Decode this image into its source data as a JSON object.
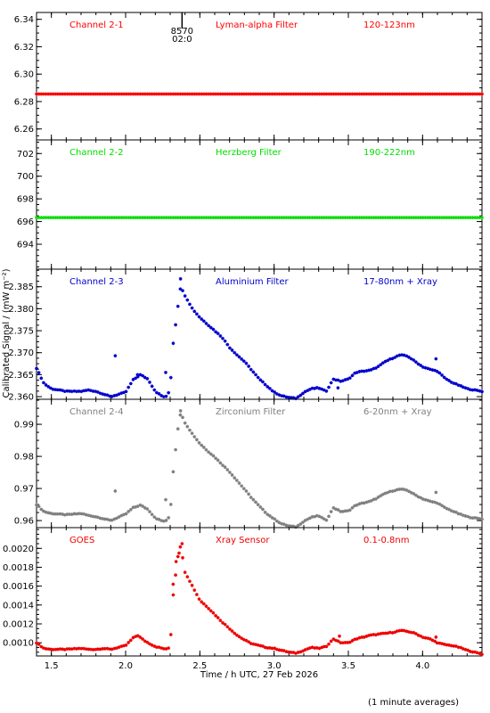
{
  "figure": {
    "xlabel": "Time / h UTC, 27 Feb 2026",
    "ylabel": "Calibrated Signal / (mW m⁻²)",
    "footnote": "(1 minute averages)",
    "orbit_marker": {
      "x": 2.38,
      "label_top": "8570",
      "label_bottom": "02:0"
    }
  },
  "chart_data": [
    {
      "type": "scatter",
      "channel": "Channel 2-1",
      "filter": "Lyman-alpha Filter",
      "band": "120-123nm",
      "color": "#ff0000",
      "xlim": [
        1.4,
        4.4
      ],
      "ylim": [
        6.252,
        6.345
      ],
      "y_ticks": [
        "6.34",
        "6.32",
        "6.30",
        "6.28",
        "6.26"
      ],
      "y_tick_values": [
        6.34,
        6.32,
        6.3,
        6.28,
        6.26
      ],
      "series": [
        {
          "profile": "flat",
          "level": 6.2855,
          "values_desc": "constant"
        }
      ]
    },
    {
      "type": "scatter",
      "channel": "Channel 2-2",
      "filter": "Herzberg Filter",
      "band": "190-222nm",
      "color": "#00dd00",
      "xlim": [
        1.4,
        4.4
      ],
      "ylim": [
        691.8,
        703.2
      ],
      "y_ticks": [
        "702",
        "700",
        "698",
        "696",
        "694"
      ],
      "y_tick_values": [
        702,
        700,
        698,
        696,
        694
      ],
      "series": [
        {
          "profile": "flat",
          "level": 696.35,
          "values_desc": "constant"
        }
      ]
    },
    {
      "type": "scatter",
      "channel": "Channel 2-3",
      "filter": "Aluminium Filter",
      "band": "17-80nm + Xray",
      "color": "#0000cc",
      "xlim": [
        1.4,
        4.4
      ],
      "ylim": [
        2.3594,
        2.389
      ],
      "y_ticks": [
        "2.385",
        "2.380",
        "2.375",
        "2.370",
        "2.365",
        "2.360"
      ],
      "y_tick_values": [
        2.385,
        2.38,
        2.375,
        2.37,
        2.365,
        2.36
      ],
      "series": [
        {
          "profile": "flare"
        }
      ],
      "curve": {
        "x": [
          1.4,
          1.45,
          1.5,
          1.6,
          1.7,
          1.75,
          1.8,
          1.85,
          1.9,
          2.0,
          2.05,
          2.1,
          2.15,
          2.2,
          2.25,
          2.28,
          2.3,
          2.32,
          2.35,
          2.37,
          2.4,
          2.45,
          2.5,
          2.55,
          2.6,
          2.65,
          2.7,
          2.75,
          2.8,
          2.85,
          2.9,
          2.95,
          3.0,
          3.05,
          3.1,
          3.15,
          3.2,
          3.25,
          3.3,
          3.35,
          3.4,
          3.45,
          3.5,
          3.55,
          3.6,
          3.65,
          3.7,
          3.75,
          3.8,
          3.85,
          3.9,
          3.95,
          4.0,
          4.05,
          4.1,
          4.15,
          4.2,
          4.25,
          4.3,
          4.35,
          4.4
        ],
        "y": [
          2.3665,
          2.363,
          2.3618,
          2.3612,
          2.3612,
          2.3615,
          2.3612,
          2.3606,
          2.36,
          2.361,
          2.3638,
          2.365,
          2.364,
          2.3612,
          2.36,
          2.36,
          2.362,
          2.372,
          2.38,
          2.385,
          2.383,
          2.38,
          2.378,
          2.3765,
          2.375,
          2.3735,
          2.3712,
          2.3695,
          2.368,
          2.366,
          2.364,
          2.3625,
          2.361,
          2.3602,
          2.3598,
          2.3596,
          2.361,
          2.3618,
          2.362,
          2.3612,
          2.364,
          2.3635,
          2.364,
          2.3655,
          2.3658,
          2.366,
          2.3668,
          2.368,
          2.3688,
          2.3695,
          2.3692,
          2.368,
          2.3668,
          2.3662,
          2.3658,
          2.3642,
          2.3632,
          2.3625,
          2.3618,
          2.3615,
          2.3612
        ]
      },
      "outliers": [
        [
          1.93,
          2.3693
        ],
        [
          2.27,
          2.3655
        ],
        [
          2.37,
          2.3868
        ],
        [
          2.08,
          2.365
        ],
        [
          4.09,
          2.3686
        ],
        [
          3.43,
          2.362
        ]
      ]
    },
    {
      "type": "scatter",
      "channel": "Channel 2-4",
      "filter": "Zirconium Filter",
      "band": "6-20nm + Xray",
      "color": "#808080",
      "xlim": [
        1.4,
        4.4
      ],
      "ylim": [
        0.9578,
        0.9978
      ],
      "y_ticks": [
        "0.99",
        "0.98",
        "0.97",
        "0.96"
      ],
      "y_tick_values": [
        0.99,
        0.98,
        0.97,
        0.96
      ],
      "series": [
        {
          "profile": "flare"
        }
      ],
      "curve": {
        "x": [
          1.4,
          1.45,
          1.5,
          1.6,
          1.7,
          1.75,
          1.8,
          1.85,
          1.9,
          2.0,
          2.05,
          2.1,
          2.15,
          2.2,
          2.25,
          2.28,
          2.3,
          2.32,
          2.35,
          2.37,
          2.4,
          2.45,
          2.5,
          2.55,
          2.6,
          2.65,
          2.7,
          2.75,
          2.8,
          2.85,
          2.9,
          2.95,
          3.0,
          3.05,
          3.1,
          3.15,
          3.2,
          3.25,
          3.3,
          3.35,
          3.4,
          3.45,
          3.5,
          3.55,
          3.6,
          3.65,
          3.7,
          3.75,
          3.8,
          3.85,
          3.9,
          3.95,
          4.0,
          4.05,
          4.1,
          4.15,
          4.2,
          4.25,
          4.3,
          4.35,
          4.4
        ],
        "y": [
          0.965,
          0.9628,
          0.9622,
          0.9618,
          0.9622,
          0.9616,
          0.9612,
          0.9606,
          0.96,
          0.962,
          0.964,
          0.9648,
          0.9635,
          0.9608,
          0.9598,
          0.96,
          0.962,
          0.975,
          0.988,
          0.9935,
          0.9905,
          0.987,
          0.984,
          0.9818,
          0.9798,
          0.9775,
          0.9752,
          0.9725,
          0.9698,
          0.967,
          0.9645,
          0.9622,
          0.9605,
          0.959,
          0.9583,
          0.958,
          0.9598,
          0.961,
          0.9615,
          0.96,
          0.964,
          0.9628,
          0.963,
          0.9648,
          0.9655,
          0.966,
          0.9672,
          0.9685,
          0.9693,
          0.9698,
          0.9694,
          0.968,
          0.9668,
          0.966,
          0.9655,
          0.964,
          0.963,
          0.962,
          0.9612,
          0.9608,
          0.9605
        ]
      },
      "outliers": [
        [
          1.93,
          0.9692
        ],
        [
          2.27,
          0.9665
        ],
        [
          2.37,
          0.9942
        ],
        [
          4.09,
          0.9688
        ]
      ]
    },
    {
      "type": "scatter",
      "channel": "GOES",
      "filter": "Xray Sensor",
      "band": "0.1-0.8nm",
      "color": "#ee0000",
      "xlim": [
        1.4,
        4.4
      ],
      "ylim": [
        0.00086,
        0.00222
      ],
      "y_ticks": [
        "0.0020",
        "0.0018",
        "0.0016",
        "0.0014",
        "0.0012",
        "0.0010"
      ],
      "y_tick_values": [
        0.002,
        0.0018,
        0.0016,
        0.0014,
        0.0012,
        0.001
      ],
      "series": [
        {
          "profile": "flare"
        }
      ],
      "curve": {
        "x": [
          1.4,
          1.45,
          1.5,
          1.6,
          1.7,
          1.75,
          1.8,
          1.85,
          1.9,
          2.0,
          2.05,
          2.08,
          2.12,
          2.15,
          2.2,
          2.25,
          2.28,
          2.3,
          2.32,
          2.35,
          2.37,
          2.4,
          2.45,
          2.5,
          2.55,
          2.6,
          2.65,
          2.7,
          2.75,
          2.8,
          2.85,
          2.9,
          2.95,
          3.0,
          3.05,
          3.1,
          3.15,
          3.2,
          3.25,
          3.3,
          3.35,
          3.4,
          3.45,
          3.5,
          3.55,
          3.6,
          3.65,
          3.7,
          3.75,
          3.8,
          3.85,
          3.9,
          3.95,
          4.0,
          4.05,
          4.1,
          4.15,
          4.2,
          4.25,
          4.3,
          4.35,
          4.4
        ],
        "y": [
          0.001,
          0.00094,
          0.00093,
          0.00093,
          0.00094,
          0.00093,
          0.00093,
          0.00094,
          0.00093,
          0.00097,
          0.00105,
          0.00108,
          0.00103,
          0.001,
          0.00096,
          0.00094,
          0.00093,
          0.00096,
          0.0015,
          0.0019,
          0.00203,
          0.00175,
          0.0016,
          0.00145,
          0.00138,
          0.0013,
          0.00122,
          0.00115,
          0.00108,
          0.00103,
          0.00099,
          0.00097,
          0.00095,
          0.00094,
          0.00092,
          0.0009,
          0.00089,
          0.00092,
          0.00095,
          0.00094,
          0.00096,
          0.00104,
          0.001,
          0.001,
          0.00104,
          0.00106,
          0.00108,
          0.00109,
          0.0011,
          0.00111,
          0.00113,
          0.00112,
          0.0011,
          0.00106,
          0.00104,
          0.001,
          0.00098,
          0.00097,
          0.00095,
          0.00092,
          0.0009,
          0.00088
        ]
      },
      "outliers": [
        [
          2.32,
          0.00162
        ],
        [
          2.34,
          0.00186
        ],
        [
          2.36,
          0.00195
        ],
        [
          2.38,
          0.00205
        ],
        [
          4.09,
          0.00106
        ],
        [
          3.44,
          0.00107
        ]
      ]
    }
  ],
  "x_axis": {
    "ticks": [
      "1.5",
      "2.0",
      "2.5",
      "3.0",
      "3.5",
      "4.0"
    ],
    "tick_values": [
      1.5,
      2.0,
      2.5,
      3.0,
      3.5,
      4.0
    ]
  }
}
